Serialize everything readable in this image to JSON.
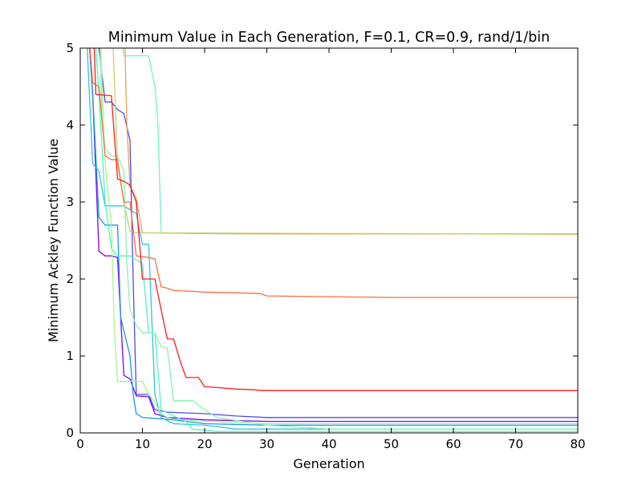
{
  "chart_data": {
    "type": "line",
    "title": "Minimum Value in Each Generation, F=0.1, CR=0.9, rand/1/bin",
    "xlabel": "Generation",
    "ylabel": "Minimum Ackley Function Value",
    "xlim": [
      0,
      80
    ],
    "ylim": [
      0,
      5
    ],
    "xticks": [
      "0",
      "10",
      "20",
      "30",
      "40",
      "50",
      "60",
      "70",
      "80"
    ],
    "yticks": [
      "0",
      "1",
      "2",
      "3",
      "4",
      "5"
    ],
    "grid": false,
    "legend": "none",
    "series": [
      {
        "color": "#4b4bf2",
        "points": [
          [
            1,
            5.6
          ],
          [
            3,
            5.0
          ],
          [
            4,
            4.3
          ],
          [
            5,
            4.3
          ],
          [
            6,
            4.2
          ],
          [
            7,
            4.15
          ],
          [
            8,
            3.8
          ],
          [
            8.5,
            2.0
          ],
          [
            9,
            0.5
          ],
          [
            10,
            0.5
          ],
          [
            11,
            0.5
          ],
          [
            12,
            0.3
          ],
          [
            14,
            0.27
          ],
          [
            20,
            0.25
          ],
          [
            25,
            0.22
          ],
          [
            30,
            0.2
          ],
          [
            80,
            0.2
          ]
        ]
      },
      {
        "color": "#8000ff",
        "points": [
          [
            1,
            5.6
          ],
          [
            2,
            4.4
          ],
          [
            3,
            2.36
          ],
          [
            4,
            2.3
          ],
          [
            5,
            2.3
          ],
          [
            6,
            2.28
          ],
          [
            6.5,
            1.5
          ],
          [
            7,
            0.75
          ],
          [
            8,
            0.7
          ],
          [
            9,
            0.48
          ],
          [
            11,
            0.47
          ],
          [
            12,
            0.25
          ],
          [
            14,
            0.2
          ],
          [
            20,
            0.17
          ],
          [
            30,
            0.15
          ],
          [
            80,
            0.15
          ]
        ]
      },
      {
        "color": "#1996f0",
        "points": [
          [
            1,
            5.6
          ],
          [
            2,
            4.4
          ],
          [
            3,
            2.8
          ],
          [
            4,
            2.7
          ],
          [
            6,
            2.7
          ],
          [
            6.5,
            1.5
          ],
          [
            8,
            1.0
          ],
          [
            8.5,
            0.5
          ],
          [
            9,
            0.25
          ],
          [
            10,
            0.2
          ],
          [
            15,
            0.17
          ],
          [
            20,
            0.12
          ],
          [
            30,
            0.1
          ],
          [
            80,
            0.1
          ]
        ]
      },
      {
        "color": "#2ec4e0",
        "points": [
          [
            1,
            5.2
          ],
          [
            2,
            3.5
          ],
          [
            3,
            3.4
          ],
          [
            4,
            2.95
          ],
          [
            7,
            2.95
          ],
          [
            8,
            2.9
          ],
          [
            9,
            2.85
          ],
          [
            10,
            2.45
          ],
          [
            11,
            2.45
          ],
          [
            11.5,
            1.5
          ],
          [
            12,
            0.5
          ],
          [
            13,
            0.2
          ],
          [
            15,
            0.12
          ],
          [
            20,
            0.1
          ],
          [
            25,
            0.05
          ],
          [
            80,
            0.05
          ]
        ]
      },
      {
        "color": "#4df5c3",
        "points": [
          [
            2,
            5.6
          ],
          [
            3,
            4.4
          ],
          [
            4,
            3.0
          ],
          [
            5,
            2.4
          ],
          [
            6,
            2.3
          ],
          [
            8,
            2.3
          ],
          [
            10,
            2.2
          ],
          [
            11,
            1.3
          ],
          [
            12,
            1.3
          ],
          [
            13,
            0.3
          ],
          [
            15,
            0.22
          ],
          [
            17,
            0.15
          ],
          [
            18,
            0.05
          ],
          [
            22,
            0.02
          ],
          [
            80,
            0.02
          ]
        ]
      },
      {
        "color": "#88f4a9",
        "points": [
          [
            3,
            5.6
          ],
          [
            3.5,
            4.1
          ],
          [
            4,
            3.7
          ],
          [
            5,
            3.6
          ],
          [
            6,
            3.6
          ],
          [
            7,
            3.4
          ],
          [
            7.5,
            2.2
          ],
          [
            8,
            1.6
          ],
          [
            9,
            1.4
          ],
          [
            10,
            1.3
          ],
          [
            12,
            1.3
          ],
          [
            13,
            1.12
          ],
          [
            14,
            1.1
          ],
          [
            15,
            0.42
          ],
          [
            18,
            0.42
          ],
          [
            20,
            0.3
          ],
          [
            22,
            0.2
          ],
          [
            30,
            0.1
          ],
          [
            40,
            0.05
          ],
          [
            80,
            0.05
          ]
        ]
      },
      {
        "color": "#a4f590",
        "points": [
          [
            3,
            5.6
          ],
          [
            4,
            3.5
          ],
          [
            5,
            2.7
          ],
          [
            5.5,
            1.3
          ],
          [
            6,
            0.67
          ],
          [
            10,
            0.67
          ],
          [
            11,
            0.5
          ],
          [
            12,
            0.4
          ],
          [
            13,
            0.25
          ],
          [
            14,
            0.2
          ],
          [
            15,
            0.18
          ],
          [
            20,
            0.15
          ],
          [
            30,
            0.12
          ],
          [
            80,
            0.12
          ]
        ]
      },
      {
        "color": "#6ef4c8",
        "points": [
          [
            6,
            5.6
          ],
          [
            7,
            4.9
          ],
          [
            11,
            4.9
          ],
          [
            12,
            4.5
          ],
          [
            12.5,
            4.0
          ],
          [
            13,
            2.6
          ],
          [
            20,
            2.59
          ],
          [
            30,
            2.585
          ],
          [
            80,
            2.585
          ]
        ]
      },
      {
        "color": "#f0a056",
        "points": [
          [
            7,
            5.6
          ],
          [
            7.5,
            4.0
          ],
          [
            8,
            3.2
          ],
          [
            9,
            3.05
          ],
          [
            10,
            2.6
          ],
          [
            20,
            2.59
          ],
          [
            30,
            2.585
          ],
          [
            80,
            2.585
          ]
        ]
      },
      {
        "color": "#c8cf6e",
        "points": [
          [
            5,
            5.6
          ],
          [
            6,
            3.5
          ],
          [
            7,
            3.0
          ],
          [
            8,
            2.62
          ],
          [
            9,
            2.6
          ],
          [
            80,
            2.58
          ]
        ]
      },
      {
        "color": "#ff6b3a",
        "points": [
          [
            1,
            5.6
          ],
          [
            2,
            4.55
          ],
          [
            3,
            4.5
          ],
          [
            4,
            3.6
          ],
          [
            5,
            3.55
          ],
          [
            6,
            3.55
          ],
          [
            7,
            3.0
          ],
          [
            8,
            3.0
          ],
          [
            9,
            2.3
          ],
          [
            11,
            2.28
          ],
          [
            12,
            2.26
          ],
          [
            13,
            1.9
          ],
          [
            14,
            1.88
          ],
          [
            15,
            1.85
          ],
          [
            18,
            1.84
          ],
          [
            20,
            1.83
          ],
          [
            25,
            1.82
          ],
          [
            29,
            1.81
          ],
          [
            30,
            1.78
          ],
          [
            40,
            1.77
          ],
          [
            50,
            1.76
          ],
          [
            80,
            1.76
          ]
        ]
      },
      {
        "color": "#ff1a1a",
        "points": [
          [
            2,
            5.6
          ],
          [
            2.5,
            4.4
          ],
          [
            5,
            4.38
          ],
          [
            6,
            3.3
          ],
          [
            7,
            3.27
          ],
          [
            8,
            3.22
          ],
          [
            9,
            3.0
          ],
          [
            10,
            2.0
          ],
          [
            12,
            2.0
          ],
          [
            13,
            1.6
          ],
          [
            14,
            1.22
          ],
          [
            15,
            1.22
          ],
          [
            16,
            0.95
          ],
          [
            17,
            0.72
          ],
          [
            19,
            0.72
          ],
          [
            20,
            0.6
          ],
          [
            22,
            0.59
          ],
          [
            25,
            0.57
          ],
          [
            28,
            0.56
          ],
          [
            29,
            0.55
          ],
          [
            40,
            0.55
          ],
          [
            80,
            0.55
          ]
        ]
      }
    ]
  }
}
